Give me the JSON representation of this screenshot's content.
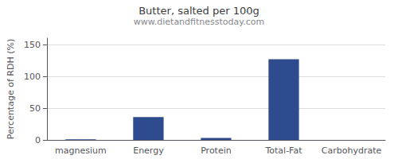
{
  "chart_data": {
    "type": "bar",
    "title": "Butter, salted per 100g",
    "subtitle": "www.dietandfitnesstoday.com",
    "ylabel": "Percentage of RDH (%)",
    "categories": [
      "magnesium",
      "Energy",
      "Protein",
      "Total-Fat",
      "Carbohydrate"
    ],
    "values": [
      1,
      36,
      3,
      127,
      0
    ],
    "color": "#2e4b8e",
    "ylim": [
      0,
      160
    ],
    "yticks": [
      0,
      50,
      100,
      150
    ],
    "grid": true
  }
}
